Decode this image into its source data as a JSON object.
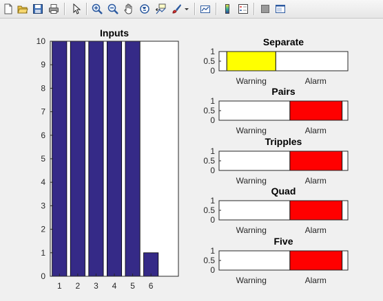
{
  "toolbar": {
    "buttons": [
      {
        "name": "new-figure-icon"
      },
      {
        "name": "open-file-icon"
      },
      {
        "name": "save-figure-icon"
      },
      {
        "name": "print-figure-icon"
      },
      {
        "name": "edit-plot-arrow-icon"
      },
      {
        "name": "zoom-in-icon"
      },
      {
        "name": "zoom-out-icon"
      },
      {
        "name": "pan-hand-icon"
      },
      {
        "name": "rotate-3d-icon"
      },
      {
        "name": "data-cursor-icon"
      },
      {
        "name": "brush-icon"
      },
      {
        "name": "brush-dropdown-icon"
      },
      {
        "name": "link-plot-icon"
      },
      {
        "name": "insert-colorbar-icon"
      },
      {
        "name": "insert-legend-icon"
      },
      {
        "name": "hide-plot-tools-icon"
      },
      {
        "name": "show-plot-tools-icon"
      }
    ]
  },
  "colors": {
    "bar": "#352a87",
    "warning": "#ffff00",
    "alarm": "#ff0000"
  },
  "chart_data": [
    {
      "type": "bar",
      "title": "Inputs",
      "categories": [
        "1",
        "2",
        "3",
        "4",
        "5",
        "6"
      ],
      "values": [
        10,
        10,
        10,
        10,
        10,
        1
      ],
      "xlim": [
        0.5,
        7.5
      ],
      "ylim": [
        0,
        10
      ],
      "yticks": [
        "0",
        "1",
        "2",
        "3",
        "4",
        "5",
        "6",
        "7",
        "8",
        "9",
        "10"
      ],
      "grid": false,
      "color": "#352a87"
    },
    {
      "type": "bar",
      "orientation": "horizontal",
      "title": "Separate",
      "xtick_labels": [
        "Warning",
        "Alarm"
      ],
      "ytick_labels": [
        "1",
        "0.5",
        "0"
      ],
      "xlim": [
        0,
        1
      ],
      "fill_start": 0.06,
      "fill_end": 0.44,
      "color": "#ffff00"
    },
    {
      "type": "bar",
      "orientation": "horizontal",
      "title": "Pairs",
      "xtick_labels": [
        "Warning",
        "Alarm"
      ],
      "ytick_labels": [
        "1",
        "0.5",
        "0"
      ],
      "xlim": [
        0,
        1
      ],
      "fill_start": 0.55,
      "fill_end": 0.955,
      "color": "#ff0000"
    },
    {
      "type": "bar",
      "orientation": "horizontal",
      "title": "Tripples",
      "xtick_labels": [
        "Warning",
        "Alarm"
      ],
      "ytick_labels": [
        "1",
        "0.5",
        "0"
      ],
      "xlim": [
        0,
        1
      ],
      "fill_start": 0.55,
      "fill_end": 0.955,
      "color": "#ff0000"
    },
    {
      "type": "bar",
      "orientation": "horizontal",
      "title": "Quad",
      "xtick_labels": [
        "Warning",
        "Alarm"
      ],
      "ytick_labels": [
        "1",
        "0.5",
        "0"
      ],
      "xlim": [
        0,
        1
      ],
      "fill_start": 0.55,
      "fill_end": 0.955,
      "color": "#ff0000"
    },
    {
      "type": "bar",
      "orientation": "horizontal",
      "title": "Five",
      "xtick_labels": [
        "Warning",
        "Alarm"
      ],
      "ytick_labels": [
        "1",
        "0.5",
        "0"
      ],
      "xlim": [
        0,
        1
      ],
      "fill_start": 0.55,
      "fill_end": 0.955,
      "color": "#ff0000"
    }
  ]
}
